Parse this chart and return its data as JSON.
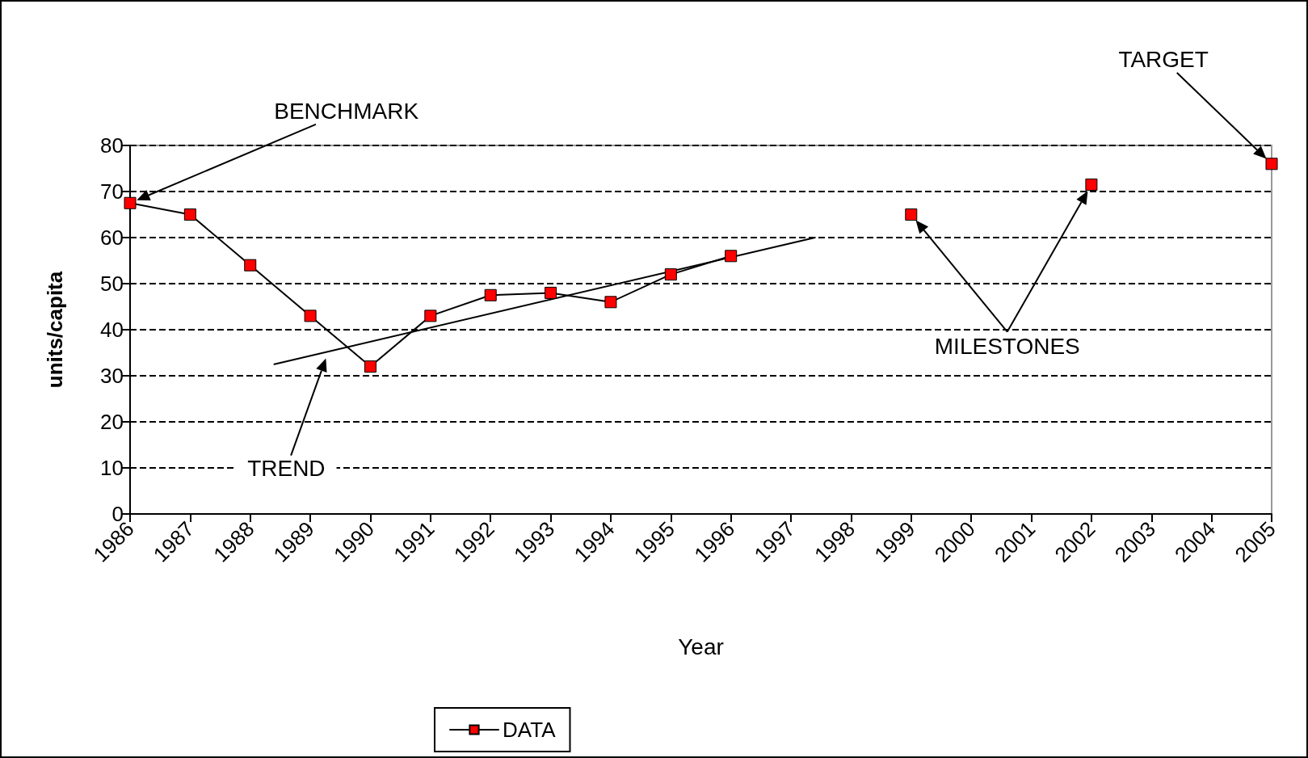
{
  "chart_data": {
    "type": "line",
    "xlabel": "Year",
    "ylabel": "units/capita",
    "x": [
      1986,
      1987,
      1988,
      1989,
      1990,
      1991,
      1992,
      1993,
      1994,
      1995,
      1996,
      1997,
      1998,
      1999,
      2000,
      2001,
      2002,
      2003,
      2004,
      2005
    ],
    "xlim": [
      1986,
      2005
    ],
    "xticks": [
      1986,
      1987,
      1988,
      1989,
      1990,
      1991,
      1992,
      1993,
      1994,
      1995,
      1996,
      1997,
      1998,
      1999,
      2000,
      2001,
      2002,
      2003,
      2004,
      2005
    ],
    "ylim": [
      0,
      80
    ],
    "yticks": [
      0,
      10,
      20,
      30,
      40,
      50,
      60,
      70,
      80
    ],
    "grid": "y",
    "legend": "bottom",
    "marker": "square",
    "line_style": "solid",
    "series": [
      {
        "name": "DATA",
        "color": "#ff0000",
        "values": [
          67.5,
          65,
          54,
          43,
          32,
          43,
          47.5,
          48,
          46,
          52,
          56,
          null,
          null,
          65,
          null,
          null,
          71.5,
          null,
          null,
          76
        ]
      },
      {
        "type": "line",
        "color": "#000000",
        "x": [
          1988.4,
          1997.4
        ],
        "values": [
          32.5,
          60
        ],
        "marker": "none"
      }
    ],
    "annotations": [
      "BENCHMARK",
      "TREND",
      "MILESTONES",
      "TARGET"
    ]
  }
}
